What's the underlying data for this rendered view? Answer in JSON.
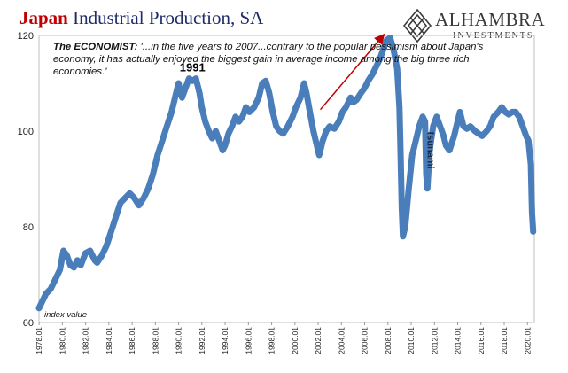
{
  "header": {
    "title_part1": "Japan",
    "title_part2": "Industrial Production, SA"
  },
  "logo": {
    "brand": "ALHAMBRA",
    "subtitle": "INVESTMENTS",
    "icon": "diamond-lattice-icon"
  },
  "quote": {
    "source": "The ECONOMIST",
    "text": "'...in the five years to 2007...contrary to the popular pessimism about Japan's economy, it has actually enjoyed the biggest gain in average income among the big three rich economies.'"
  },
  "chart_data": {
    "type": "line",
    "ylabel": "index value",
    "ylim": [
      60,
      120
    ],
    "yticks": [
      60,
      80,
      100,
      120
    ],
    "xlim": [
      1978.0,
      2020.6
    ],
    "xticks": [
      "1978.01",
      "1980.01",
      "1982.01",
      "1984.01",
      "1986.01",
      "1988.01",
      "1990.01",
      "1992.01",
      "1994.01",
      "1996.01",
      "1998.01",
      "2000.01",
      "2002.01",
      "2004.01",
      "2006.01",
      "2008.01",
      "2010.01",
      "2012.01",
      "2014.01",
      "2016.01",
      "2018.01",
      "2020.01"
    ],
    "line_color": "#4a7ebb",
    "grid": false,
    "annotations": [
      {
        "text": "1991",
        "x": 1991.2,
        "y": 112.5
      },
      {
        "text": "tsunami",
        "x": 2011.4,
        "y": 96,
        "rotated": true
      }
    ],
    "arrow": {
      "from": [
        2002.2,
        104.5
      ],
      "to": [
        2007.6,
        120
      ],
      "color": "#c00000"
    },
    "series": [
      {
        "points": [
          [
            1978.0,
            63
          ],
          [
            1978.3,
            64.5
          ],
          [
            1978.6,
            66
          ],
          [
            1979.0,
            67
          ],
          [
            1979.4,
            69
          ],
          [
            1979.8,
            71
          ],
          [
            1980.1,
            75
          ],
          [
            1980.4,
            74
          ],
          [
            1980.7,
            72
          ],
          [
            1981.0,
            71.5
          ],
          [
            1981.3,
            73
          ],
          [
            1981.6,
            72
          ],
          [
            1982.0,
            74.5
          ],
          [
            1982.4,
            75
          ],
          [
            1982.8,
            73
          ],
          [
            1983.0,
            72.5
          ],
          [
            1983.4,
            74
          ],
          [
            1983.8,
            76
          ],
          [
            1984.2,
            79
          ],
          [
            1984.6,
            82
          ],
          [
            1985.0,
            85
          ],
          [
            1985.4,
            86
          ],
          [
            1985.8,
            87
          ],
          [
            1986.2,
            86
          ],
          [
            1986.6,
            84.5
          ],
          [
            1987.0,
            86
          ],
          [
            1987.4,
            88
          ],
          [
            1987.8,
            91
          ],
          [
            1988.2,
            95
          ],
          [
            1988.6,
            98
          ],
          [
            1989.0,
            101
          ],
          [
            1989.4,
            104
          ],
          [
            1989.8,
            108
          ],
          [
            1990.0,
            110
          ],
          [
            1990.3,
            107
          ],
          [
            1990.6,
            109
          ],
          [
            1990.9,
            111
          ],
          [
            1991.2,
            110.5
          ],
          [
            1991.5,
            111
          ],
          [
            1991.8,
            108
          ],
          [
            1992.0,
            105
          ],
          [
            1992.3,
            102
          ],
          [
            1992.6,
            100
          ],
          [
            1992.9,
            98.5
          ],
          [
            1993.2,
            100
          ],
          [
            1993.5,
            98
          ],
          [
            1993.8,
            96
          ],
          [
            1994.0,
            97
          ],
          [
            1994.3,
            99.5
          ],
          [
            1994.6,
            101
          ],
          [
            1994.9,
            103
          ],
          [
            1995.2,
            102
          ],
          [
            1995.5,
            103
          ],
          [
            1995.8,
            105
          ],
          [
            1996.1,
            104
          ],
          [
            1996.5,
            105
          ],
          [
            1996.9,
            107
          ],
          [
            1997.2,
            110
          ],
          [
            1997.5,
            110.5
          ],
          [
            1997.8,
            108
          ],
          [
            1998.1,
            104
          ],
          [
            1998.4,
            101
          ],
          [
            1998.7,
            100
          ],
          [
            1999.0,
            99.5
          ],
          [
            1999.4,
            101
          ],
          [
            1999.8,
            103
          ],
          [
            2000.1,
            105
          ],
          [
            2000.5,
            107
          ],
          [
            2000.8,
            110
          ],
          [
            2001.0,
            108
          ],
          [
            2001.3,
            104
          ],
          [
            2001.6,
            100
          ],
          [
            2001.9,
            97
          ],
          [
            2002.1,
            95
          ],
          [
            2002.4,
            98
          ],
          [
            2002.7,
            100
          ],
          [
            2003.0,
            101
          ],
          [
            2003.4,
            100.5
          ],
          [
            2003.8,
            102
          ],
          [
            2004.1,
            104
          ],
          [
            2004.4,
            105
          ],
          [
            2004.8,
            107
          ],
          [
            2005.0,
            106
          ],
          [
            2005.3,
            106.5
          ],
          [
            2005.7,
            108
          ],
          [
            2006.0,
            109
          ],
          [
            2006.3,
            110.5
          ],
          [
            2006.7,
            112
          ],
          [
            2007.0,
            113.5
          ],
          [
            2007.3,
            115
          ],
          [
            2007.6,
            117
          ],
          [
            2007.9,
            119
          ],
          [
            2008.2,
            119.5
          ],
          [
            2008.5,
            117
          ],
          [
            2008.8,
            113
          ],
          [
            2009.0,
            105
          ],
          [
            2009.1,
            95
          ],
          [
            2009.2,
            84
          ],
          [
            2009.3,
            78
          ],
          [
            2009.5,
            80
          ],
          [
            2009.8,
            88
          ],
          [
            2010.1,
            95
          ],
          [
            2010.4,
            98
          ],
          [
            2010.7,
            101
          ],
          [
            2011.0,
            103
          ],
          [
            2011.2,
            102
          ],
          [
            2011.3,
            91
          ],
          [
            2011.4,
            88
          ],
          [
            2011.6,
            96
          ],
          [
            2011.9,
            101
          ],
          [
            2012.2,
            103
          ],
          [
            2012.5,
            101
          ],
          [
            2012.8,
            99
          ],
          [
            2013.0,
            97
          ],
          [
            2013.3,
            96
          ],
          [
            2013.7,
            99
          ],
          [
            2014.0,
            102
          ],
          [
            2014.2,
            104
          ],
          [
            2014.5,
            101
          ],
          [
            2014.8,
            100.5
          ],
          [
            2015.1,
            101
          ],
          [
            2015.5,
            100
          ],
          [
            2015.8,
            99.5
          ],
          [
            2016.1,
            99
          ],
          [
            2016.5,
            100
          ],
          [
            2016.8,
            101
          ],
          [
            2017.1,
            103
          ],
          [
            2017.5,
            104
          ],
          [
            2017.8,
            105
          ],
          [
            2018.1,
            104
          ],
          [
            2018.4,
            103.5
          ],
          [
            2018.7,
            104
          ],
          [
            2019.0,
            104
          ],
          [
            2019.3,
            103
          ],
          [
            2019.6,
            101
          ],
          [
            2019.9,
            99
          ],
          [
            2020.1,
            98
          ],
          [
            2020.3,
            93
          ],
          [
            2020.4,
            83
          ],
          [
            2020.5,
            79
          ]
        ]
      }
    ]
  }
}
